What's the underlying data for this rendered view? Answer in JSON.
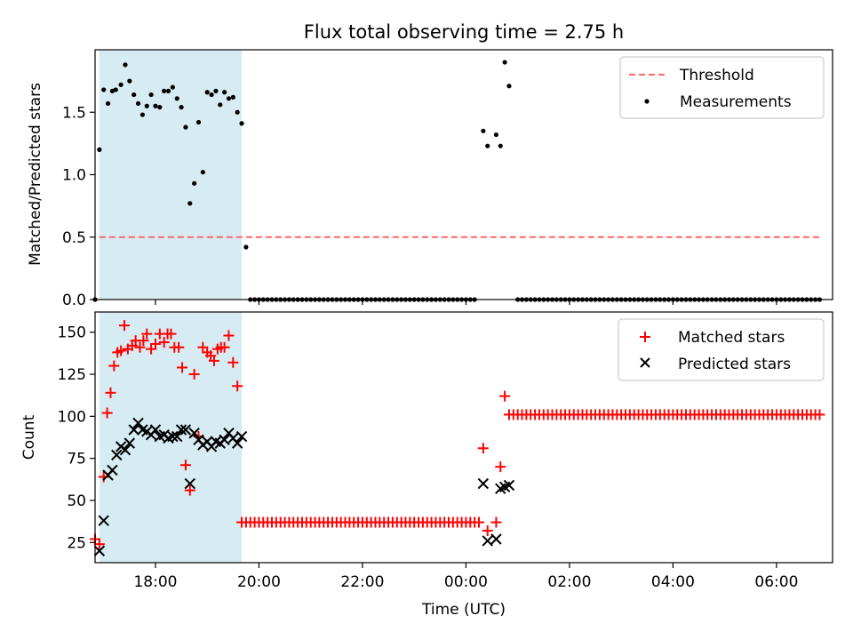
{
  "figure": {
    "title": "Flux total observing time = 2.75 h",
    "xlabel": "Time (UTC)"
  },
  "chart_data": [
    {
      "type": "scatter",
      "ylabel": "Matched/Predicted stars",
      "xlim": [
        "16:50",
        "07:05"
      ],
      "ylim": [
        0,
        2.0
      ],
      "yticks": [
        0.0,
        0.5,
        1.0,
        1.5
      ],
      "ytick_labels": [
        "0.0",
        "0.5",
        "1.0",
        "1.5"
      ],
      "grid": false,
      "legend_placement": "top-right",
      "highlight_region": {
        "start": "16:55",
        "end": "19:40",
        "color": "#add8e6"
      },
      "threshold": {
        "name": "Threshold",
        "value": 0.5,
        "start": "16:55",
        "end": "06:50",
        "color": "#ff6666",
        "style": "dashed"
      },
      "series": [
        {
          "name": "Measurements",
          "color": "#000000",
          "points": [
            [
              "16:50",
              0
            ],
            [
              "16:55",
              1.2
            ],
            [
              "17:00",
              1.68
            ],
            [
              "17:05",
              1.57
            ],
            [
              "17:10",
              1.67
            ],
            [
              "17:14",
              1.68
            ],
            [
              "17:20",
              1.72
            ],
            [
              "17:25",
              1.88
            ],
            [
              "17:30",
              1.75
            ],
            [
              "17:35",
              1.64
            ],
            [
              "17:40",
              1.57
            ],
            [
              "17:45",
              1.48
            ],
            [
              "17:50",
              1.55
            ],
            [
              "17:55",
              1.64
            ],
            [
              "18:00",
              1.55
            ],
            [
              "18:05",
              1.54
            ],
            [
              "18:10",
              1.67
            ],
            [
              "18:15",
              1.67
            ],
            [
              "18:20",
              1.7
            ],
            [
              "18:25",
              1.61
            ],
            [
              "18:30",
              1.54
            ],
            [
              "18:35",
              1.38
            ],
            [
              "18:40",
              0.77
            ],
            [
              "18:45",
              0.93
            ],
            [
              "18:50",
              1.42
            ],
            [
              "18:55",
              1.02
            ],
            [
              "19:00",
              1.66
            ],
            [
              "19:05",
              1.64
            ],
            [
              "19:10",
              1.67
            ],
            [
              "19:15",
              1.56
            ],
            [
              "19:20",
              1.66
            ],
            [
              "19:25",
              1.61
            ],
            [
              "19:30",
              1.62
            ],
            [
              "19:35",
              1.5
            ],
            [
              "19:40",
              1.41
            ],
            [
              "19:45",
              0.42
            ],
            [
              "00:20",
              1.35
            ],
            [
              "00:25",
              1.23
            ],
            [
              "00:35",
              1.32
            ],
            [
              "00:40",
              1.23
            ],
            [
              "00:45",
              1.9
            ],
            [
              "00:50",
              1.71
            ]
          ],
          "zero_segments": [
            {
              "start": "19:50",
              "end": "00:10",
              "step_minutes": 5
            },
            {
              "start": "01:00",
              "end": "06:50",
              "step_minutes": 5
            }
          ]
        }
      ]
    },
    {
      "type": "scatter",
      "ylabel": "Count",
      "xlim": [
        "16:50",
        "07:05"
      ],
      "ylim": [
        13,
        162
      ],
      "yticks": [
        25,
        50,
        75,
        100,
        125,
        150
      ],
      "ytick_labels": [
        "25",
        "50",
        "75",
        "100",
        "125",
        "150"
      ],
      "xticks": [
        "18:00",
        "20:00",
        "22:00",
        "00:00",
        "02:00",
        "04:00",
        "06:00"
      ],
      "xtick_labels": [
        "18:00",
        "20:00",
        "22:00",
        "00:00",
        "02:00",
        "04:00",
        "06:00"
      ],
      "grid": false,
      "legend_placement": "top-right",
      "highlight_region": {
        "start": "16:55",
        "end": "19:40",
        "color": "#add8e6"
      },
      "series": [
        {
          "name": "Matched stars",
          "marker": "plus",
          "color": "#ff0000",
          "points": [
            [
              "16:50",
              27
            ],
            [
              "16:55",
              24
            ],
            [
              "17:00",
              64
            ],
            [
              "17:04",
              102
            ],
            [
              "17:08",
              114
            ],
            [
              "17:12",
              130
            ],
            [
              "17:16",
              138
            ],
            [
              "17:20",
              139
            ],
            [
              "17:24",
              154
            ],
            [
              "17:28",
              140
            ],
            [
              "17:33",
              142
            ],
            [
              "17:37",
              145
            ],
            [
              "17:42",
              141
            ],
            [
              "17:46",
              145
            ],
            [
              "17:50",
              149
            ],
            [
              "17:55",
              140
            ],
            [
              "18:00",
              143
            ],
            [
              "18:05",
              149
            ],
            [
              "18:10",
              144
            ],
            [
              "18:14",
              149
            ],
            [
              "18:18",
              149
            ],
            [
              "18:22",
              141
            ],
            [
              "18:27",
              141
            ],
            [
              "18:31",
              129
            ],
            [
              "18:35",
              71
            ],
            [
              "18:40",
              56
            ],
            [
              "18:45",
              125
            ],
            [
              "18:50",
              88
            ],
            [
              "18:55",
              141
            ],
            [
              "19:00",
              138
            ],
            [
              "19:04",
              136
            ],
            [
              "19:08",
              133
            ],
            [
              "19:12",
              140
            ],
            [
              "19:16",
              141
            ],
            [
              "19:20",
              141
            ],
            [
              "19:25",
              148
            ],
            [
              "19:30",
              132
            ],
            [
              "19:35",
              118
            ],
            [
              "00:20",
              81
            ],
            [
              "00:25",
              32
            ],
            [
              "00:35",
              37
            ],
            [
              "00:40",
              70
            ],
            [
              "00:45",
              112
            ]
          ],
          "flat_segments": [
            {
              "start": "19:40",
              "end": "00:15",
              "step_minutes": 5,
              "value": 37
            },
            {
              "start": "00:50",
              "end": "06:50",
              "step_minutes": 5,
              "value": 101
            }
          ]
        },
        {
          "name": "Predicted stars",
          "marker": "x",
          "color": "#000000",
          "points": [
            [
              "16:55",
              20
            ],
            [
              "17:00",
              38
            ],
            [
              "17:05",
              65
            ],
            [
              "17:10",
              68
            ],
            [
              "17:15",
              77
            ],
            [
              "17:20",
              82
            ],
            [
              "17:25",
              80
            ],
            [
              "17:30",
              84
            ],
            [
              "17:35",
              92
            ],
            [
              "17:40",
              96
            ],
            [
              "17:45",
              92
            ],
            [
              "17:50",
              91
            ],
            [
              "17:55",
              89
            ],
            [
              "18:00",
              92
            ],
            [
              "18:05",
              88
            ],
            [
              "18:10",
              89
            ],
            [
              "18:15",
              87
            ],
            [
              "18:20",
              88
            ],
            [
              "18:25",
              88
            ],
            [
              "18:30",
              92
            ],
            [
              "18:35",
              92
            ],
            [
              "18:40",
              60
            ],
            [
              "18:45",
              90
            ],
            [
              "18:50",
              86
            ],
            [
              "18:55",
              83
            ],
            [
              "19:00",
              85
            ],
            [
              "19:05",
              82
            ],
            [
              "19:10",
              85
            ],
            [
              "19:15",
              84
            ],
            [
              "19:20",
              86
            ],
            [
              "19:25",
              90
            ],
            [
              "19:30",
              87
            ],
            [
              "19:35",
              84
            ],
            [
              "19:40",
              88
            ],
            [
              "00:20",
              60
            ],
            [
              "00:25",
              26
            ],
            [
              "00:35",
              27
            ],
            [
              "00:40",
              57
            ],
            [
              "00:45",
              58
            ],
            [
              "00:50",
              59
            ]
          ]
        }
      ]
    }
  ]
}
